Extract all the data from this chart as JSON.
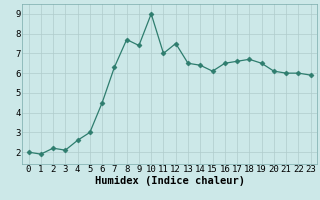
{
  "x": [
    0,
    1,
    2,
    3,
    4,
    5,
    6,
    7,
    8,
    9,
    10,
    11,
    12,
    13,
    14,
    15,
    16,
    17,
    18,
    19,
    20,
    21,
    22,
    23
  ],
  "y": [
    2.0,
    1.9,
    2.2,
    2.1,
    2.6,
    3.0,
    4.5,
    6.3,
    7.7,
    7.4,
    9.0,
    7.0,
    7.5,
    6.5,
    6.4,
    6.1,
    6.5,
    6.6,
    6.7,
    6.5,
    6.1,
    6.0,
    6.0,
    5.9
  ],
  "xlabel": "Humidex (Indice chaleur)",
  "xlim": [
    -0.5,
    23.5
  ],
  "ylim": [
    1.4,
    9.5
  ],
  "yticks": [
    2,
    3,
    4,
    5,
    6,
    7,
    8,
    9
  ],
  "xticks": [
    0,
    1,
    2,
    3,
    4,
    5,
    6,
    7,
    8,
    9,
    10,
    11,
    12,
    13,
    14,
    15,
    16,
    17,
    18,
    19,
    20,
    21,
    22,
    23
  ],
  "line_color": "#2e7d6e",
  "marker": "D",
  "marker_size": 2.5,
  "bg_color": "#cce8e8",
  "grid_color": "#b0cccc",
  "xlabel_fontsize": 7.5,
  "tick_fontsize": 6.5
}
